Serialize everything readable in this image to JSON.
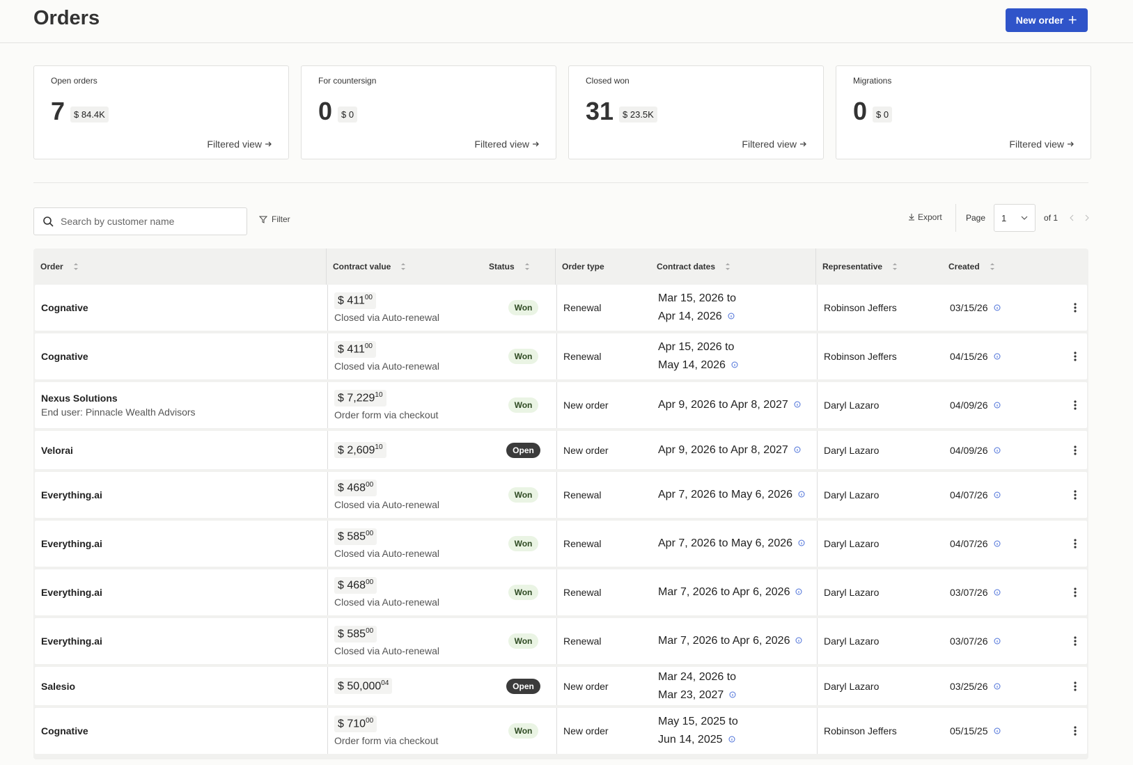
{
  "header": {
    "title": "Orders",
    "button": "New order"
  },
  "cards": [
    {
      "label": "Open orders",
      "count": "7",
      "currency": "$",
      "amount": "84.4K",
      "link": "Filtered view"
    },
    {
      "label": "For countersign",
      "count": "0",
      "currency": "$",
      "amount": "0",
      "link": "Filtered view"
    },
    {
      "label": "Closed won",
      "count": "31",
      "currency": "$",
      "amount": "23.5K",
      "link": "Filtered view"
    },
    {
      "label": "Migrations",
      "count": "0",
      "currency": "$",
      "amount": "0",
      "link": "Filtered view"
    }
  ],
  "toolbar": {
    "search_placeholder": "Search by customer name",
    "filter": "Filter",
    "export": "Export",
    "page_label": "Page",
    "page_value": "1",
    "page_of": "of 1"
  },
  "table": {
    "columns": [
      "Order",
      "Contract value",
      "Status",
      "Order type",
      "Contract dates",
      "Representative",
      "Created"
    ],
    "rows": [
      {
        "order": "Cognative",
        "currency": "$",
        "amount": "411",
        "cents": "00",
        "note": "Closed via Auto-renewal",
        "status": "Won",
        "order_type": "Renewal",
        "dates": [
          "Mar 15, 2026 to",
          "Apr 14, 2026"
        ],
        "representative": "Robinson Jeffers",
        "created": "03/15/26"
      },
      {
        "order": "Cognative",
        "currency": "$",
        "amount": "411",
        "cents": "00",
        "note": "Closed via Auto-renewal",
        "status": "Won",
        "order_type": "Renewal",
        "dates": [
          "Apr 15, 2026 to",
          "May 14, 2026"
        ],
        "representative": "Robinson Jeffers",
        "created": "04/15/26"
      },
      {
        "order": "Nexus Solutions",
        "end_user": "End user: Pinnacle Wealth Advisors",
        "currency": "$",
        "amount": "7,229",
        "cents": "10",
        "note": "Order form via checkout",
        "status": "Won",
        "order_type": "New order",
        "dates": [
          "Apr 9, 2026 to Apr 8, 2027"
        ],
        "representative": "Daryl Lazaro",
        "created": "04/09/26"
      },
      {
        "order": "Velorai",
        "currency": "$",
        "amount": "2,609",
        "cents": "10",
        "status": "Open",
        "order_type": "New order",
        "dates": [
          "Apr 9, 2026 to Apr 8, 2027"
        ],
        "representative": "Daryl Lazaro",
        "created": "04/09/26"
      },
      {
        "order": "Everything.ai",
        "currency": "$",
        "amount": "468",
        "cents": "00",
        "note": "Closed via Auto-renewal",
        "status": "Won",
        "order_type": "Renewal",
        "dates": [
          "Apr 7, 2026 to May 6, 2026"
        ],
        "representative": "Daryl Lazaro",
        "created": "04/07/26"
      },
      {
        "order": "Everything.ai",
        "currency": "$",
        "amount": "585",
        "cents": "00",
        "note": "Closed via Auto-renewal",
        "status": "Won",
        "order_type": "Renewal",
        "dates": [
          "Apr 7, 2026 to May 6, 2026"
        ],
        "representative": "Daryl Lazaro",
        "created": "04/07/26"
      },
      {
        "order": "Everything.ai",
        "currency": "$",
        "amount": "468",
        "cents": "00",
        "note": "Closed via Auto-renewal",
        "status": "Won",
        "order_type": "Renewal",
        "dates": [
          "Mar 7, 2026 to Apr 6, 2026"
        ],
        "representative": "Daryl Lazaro",
        "created": "03/07/26"
      },
      {
        "order": "Everything.ai",
        "currency": "$",
        "amount": "585",
        "cents": "00",
        "note": "Closed via Auto-renewal",
        "status": "Won",
        "order_type": "Renewal",
        "dates": [
          "Mar 7, 2026 to Apr 6, 2026"
        ],
        "representative": "Daryl Lazaro",
        "created": "03/07/26"
      },
      {
        "order": "Salesio",
        "currency": "$",
        "amount": "50,000",
        "cents": "04",
        "status": "Open",
        "order_type": "New order",
        "dates": [
          "Mar 24, 2026 to",
          "Mar 23, 2027"
        ],
        "representative": "Daryl Lazaro",
        "created": "03/25/26"
      },
      {
        "order": "Cognative",
        "currency": "$",
        "amount": "710",
        "cents": "00",
        "note": "Order form via checkout",
        "status": "Won",
        "order_type": "New order",
        "dates": [
          "May 15, 2025 to",
          "Jun 14, 2025"
        ],
        "representative": "Robinson Jeffers",
        "created": "05/15/25"
      }
    ]
  }
}
